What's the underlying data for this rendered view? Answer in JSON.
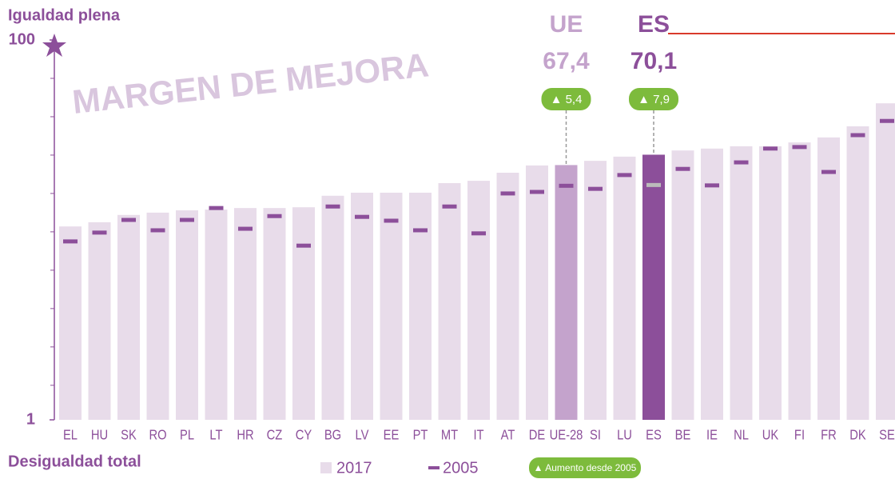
{
  "chart_data": {
    "type": "bar",
    "y_top_label": "Igualdad plena",
    "y_bottom_label": "Desigualdad total",
    "watermark": "MARGEN DE MEJORA",
    "categories": [
      "EL",
      "HU",
      "SK",
      "RO",
      "PL",
      "LT",
      "HR",
      "CZ",
      "CY",
      "BG",
      "LV",
      "EE",
      "PT",
      "MT",
      "IT",
      "AT",
      "DE",
      "UE-28",
      "SI",
      "LU",
      "ES",
      "BE",
      "IE",
      "NL",
      "UK",
      "FI",
      "FR",
      "DK",
      "SE"
    ],
    "series": [
      {
        "name": "2017",
        "color": "#e8dcea",
        "values": [
          51.4,
          52.5,
          54.4,
          55.0,
          55.6,
          55.8,
          56.2,
          56.2,
          56.4,
          59.4,
          60.2,
          60.2,
          60.2,
          62.7,
          63.3,
          65.4,
          67.3,
          67.4,
          68.5,
          69.6,
          70.1,
          71.2,
          71.7,
          72.3,
          72.3,
          73.3,
          74.6,
          77.5,
          83.5
        ]
      },
      {
        "name": "2005",
        "color": "#8c4f9a",
        "values": [
          47.5,
          49.8,
          53.1,
          50.4,
          53.1,
          56.2,
          50.8,
          54.1,
          46.4,
          56.6,
          53.9,
          52.9,
          50.4,
          56.6,
          49.6,
          60.0,
          60.4,
          62.0,
          61.2,
          64.8,
          62.2,
          66.4,
          62.1,
          68.1,
          71.7,
          72.1,
          65.6,
          75.2,
          78.9
        ]
      }
    ],
    "highlights": {
      "UE-28": "#c4a3cc",
      "ES": "#8c4f9a"
    },
    "annotations": [
      {
        "name": "UE",
        "category": "UE-28",
        "value": 67.4,
        "value_label": "67,4",
        "change": 5.4,
        "change_label": "▲ 5,4",
        "color": "#c4a3cc"
      },
      {
        "name": "ES",
        "category": "ES",
        "value": 70.1,
        "value_label": "70,1",
        "change": 7.9,
        "change_label": "▲ 7,9",
        "color": "#8c4f9a"
      }
    ],
    "change_legend": "▲ Aumento desde 2005",
    "ylim": [
      1,
      100
    ],
    "yticks": [
      1,
      100
    ],
    "yminorticks": [
      10,
      20,
      30,
      40,
      50,
      60,
      70,
      80,
      90
    ]
  }
}
